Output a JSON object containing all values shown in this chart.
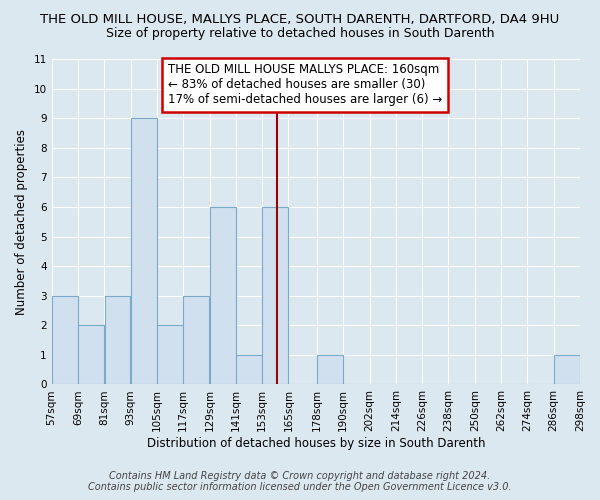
{
  "title": "THE OLD MILL HOUSE, MALLYS PLACE, SOUTH DARENTH, DARTFORD, DA4 9HU",
  "subtitle": "Size of property relative to detached houses in South Darenth",
  "xlabel": "Distribution of detached houses by size in South Darenth",
  "ylabel": "Number of detached properties",
  "bin_edges": [
    57,
    69,
    81,
    93,
    105,
    117,
    129,
    141,
    153,
    165,
    178,
    190,
    202,
    214,
    226,
    238,
    250,
    262,
    274,
    286,
    298
  ],
  "bin_labels": [
    "57sqm",
    "69sqm",
    "81sqm",
    "93sqm",
    "105sqm",
    "117sqm",
    "129sqm",
    "141sqm",
    "153sqm",
    "165sqm",
    "178sqm",
    "190sqm",
    "202sqm",
    "214sqm",
    "226sqm",
    "238sqm",
    "250sqm",
    "262sqm",
    "274sqm",
    "286sqm",
    "298sqm"
  ],
  "counts": [
    3,
    2,
    3,
    9,
    2,
    3,
    6,
    1,
    6,
    0,
    1,
    0,
    0,
    0,
    0,
    0,
    0,
    0,
    0,
    1
  ],
  "bar_color": "#d0e0ef",
  "bar_edge_color": "#7aaac8",
  "reference_line_x": 160,
  "reference_line_color": "#990000",
  "annotation_text": "THE OLD MILL HOUSE MALLYS PLACE: 160sqm\n← 83% of detached houses are smaller (30)\n17% of semi-detached houses are larger (6) →",
  "annotation_box_color": "#ffffff",
  "annotation_box_edge_color": "#cc0000",
  "ylim": [
    0,
    11
  ],
  "yticks": [
    0,
    1,
    2,
    3,
    4,
    5,
    6,
    7,
    8,
    9,
    10,
    11
  ],
  "footer_text": "Contains HM Land Registry data © Crown copyright and database right 2024.\nContains public sector information licensed under the Open Government Licence v3.0.",
  "background_color": "#dce8f0",
  "plot_bg_color": "#dce8f0",
  "grid_color": "#ffffff",
  "title_fontsize": 9.5,
  "subtitle_fontsize": 9,
  "axis_label_fontsize": 8.5,
  "tick_fontsize": 7.5,
  "annotation_fontsize": 8.5,
  "footer_fontsize": 7
}
